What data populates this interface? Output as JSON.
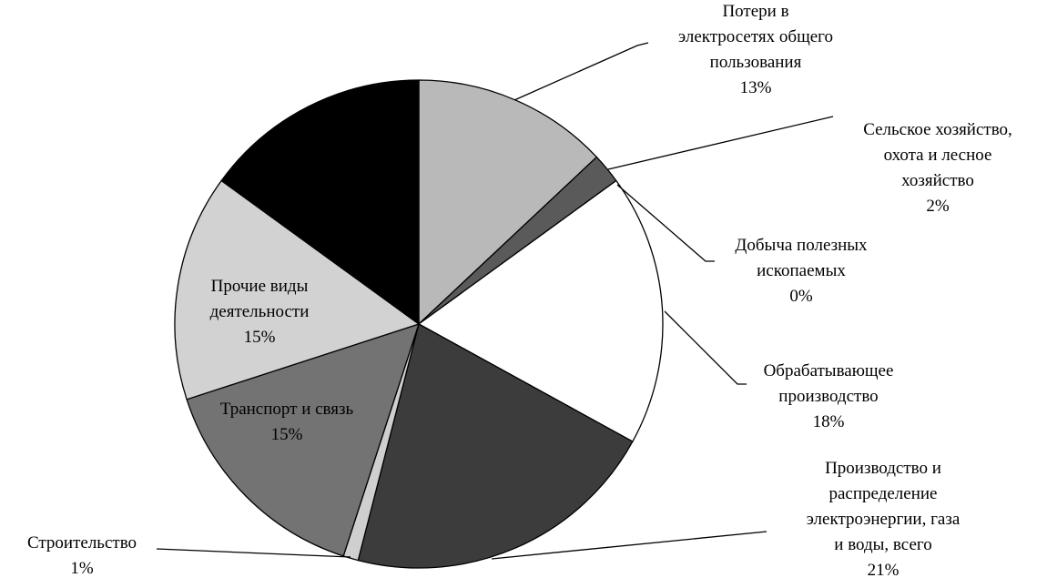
{
  "chart_data": {
    "type": "pie",
    "categories": [
      "Потери  в\nэлектросетях общего\nпользования",
      "Сельское хозяйство,\nохота и лесное\nхозяйство",
      "Добыча полезных\nископаемых",
      "Обрабатывающее\nпроизводство",
      "Производство и\nраспределение\nэлектроэнергии, газа\nи воды, всего",
      "Строительство",
      "Транспорт и связь",
      "Прочие виды\nдеятельности",
      null
    ],
    "values": [
      13,
      2,
      0,
      18,
      21,
      1,
      15,
      15,
      15
    ],
    "value_labels": [
      "13%",
      "2%",
      "0%",
      "18%",
      "21%",
      "1%",
      "15%",
      "15%",
      null
    ],
    "colors": [
      "#b9b9b9",
      "#5a5a5a",
      "#808080",
      "#ffffff",
      "#3c3c3c",
      "#cfcfcf",
      "#737373",
      "#d2d2d2",
      "#000000"
    ]
  }
}
